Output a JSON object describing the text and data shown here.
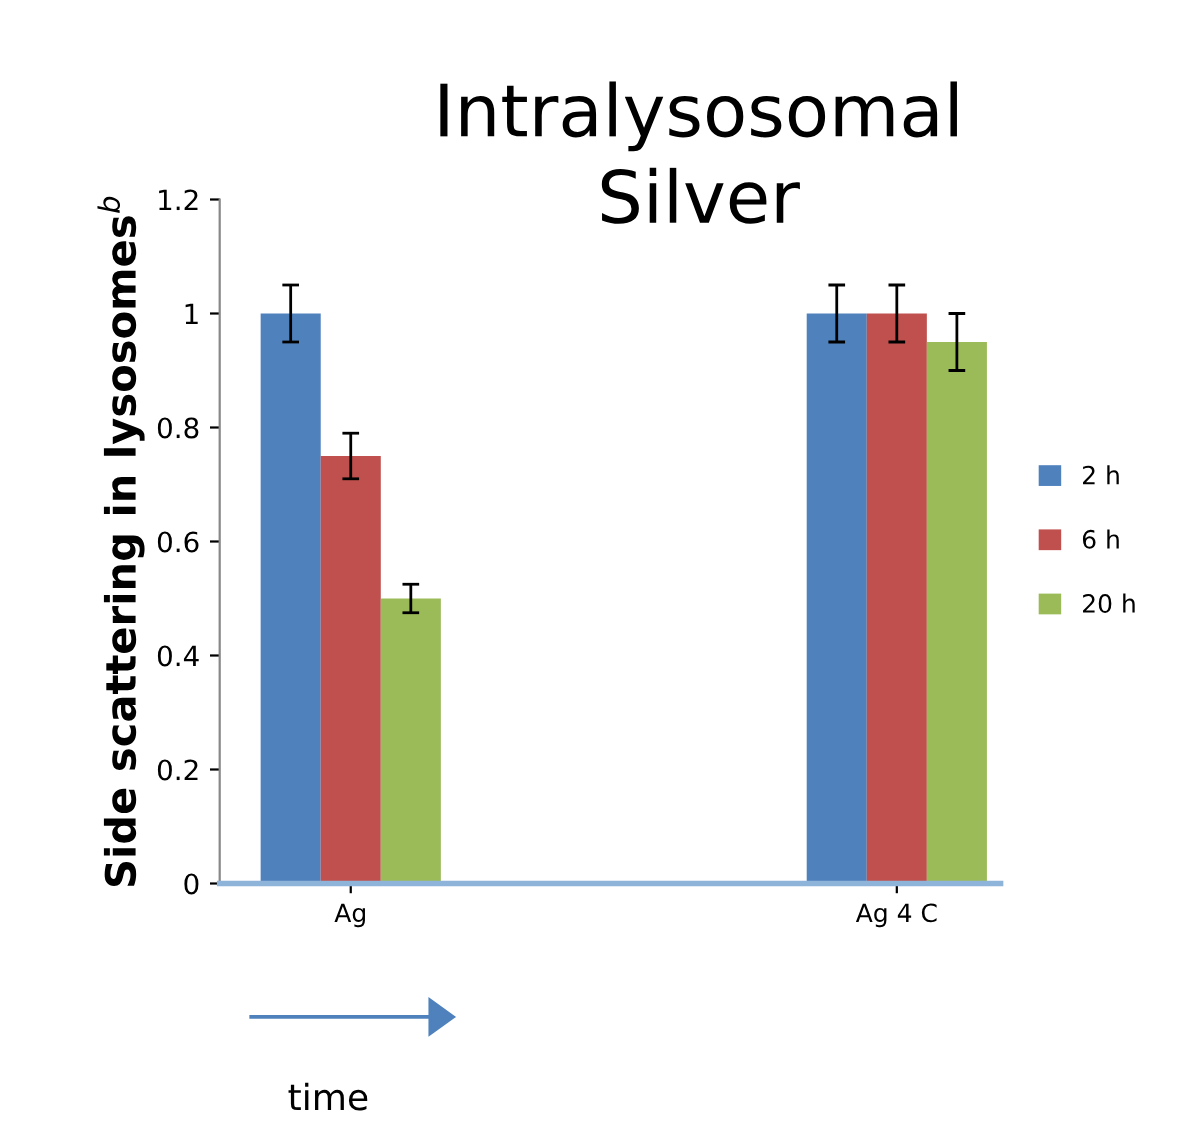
{
  "chart_data": {
    "type": "bar",
    "title": "Intralysosomal\nSilver",
    "ylabel": "Side scattering in lysosomes$^{b}$",
    "categories": [
      "Ag",
      "Ag 4 C"
    ],
    "series": [
      {
        "name": "2 h",
        "color": "#4f81bd",
        "values": [
          1.0,
          1.0
        ],
        "errors": [
          0.05,
          0.05
        ]
      },
      {
        "name": "6 h",
        "color": "#c0504d",
        "values": [
          0.75,
          1.0
        ],
        "errors": [
          0.04,
          0.05
        ]
      },
      {
        "name": "20 h",
        "color": "#9bbb59",
        "values": [
          0.5,
          0.95
        ],
        "errors": [
          0.025,
          0.05
        ]
      }
    ],
    "ylim": [
      0,
      1.2
    ],
    "yticks": [
      0,
      0.2,
      0.4,
      0.6,
      0.8,
      1,
      1.2
    ],
    "grid": false,
    "legend": "right",
    "annotations": [
      "time"
    ]
  }
}
